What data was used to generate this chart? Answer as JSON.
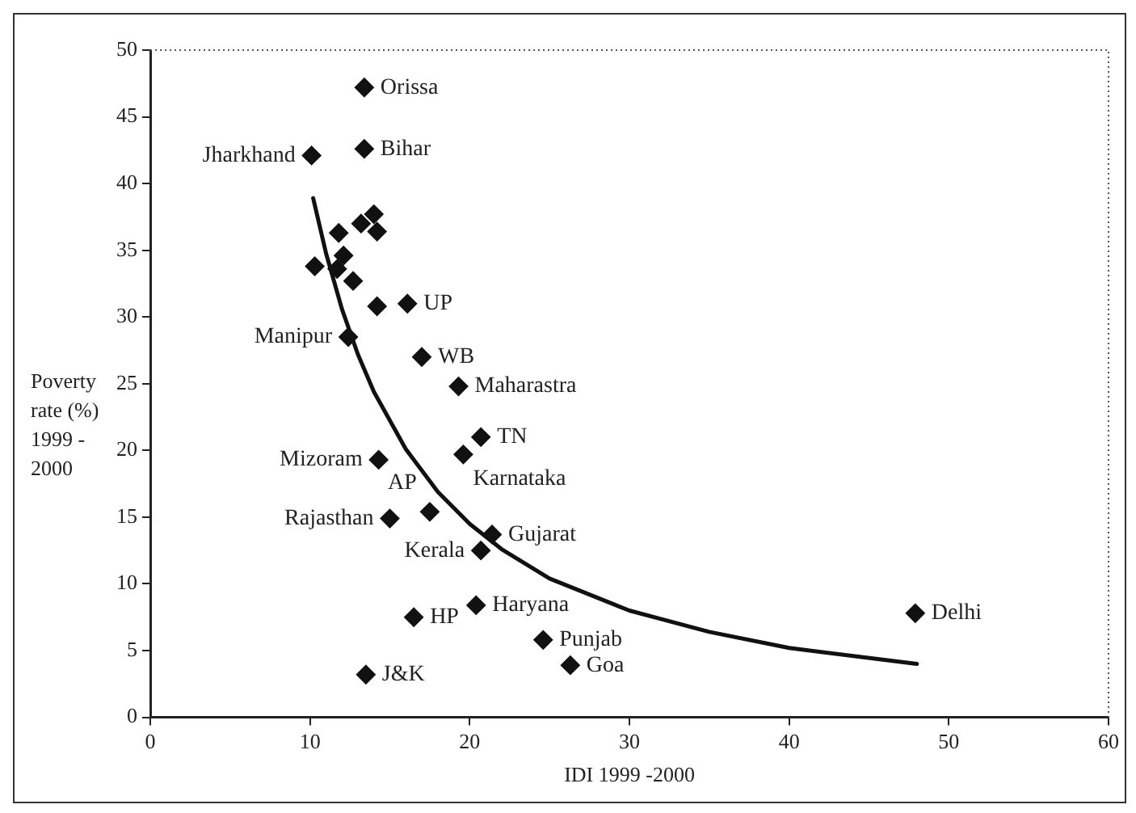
{
  "chart_data": {
    "type": "scatter",
    "xlabel": "IDI 1999 -2000",
    "ylabel": "Poverty rate (%) 1999 - 2000",
    "xlim": [
      0,
      60
    ],
    "xticks": [
      0,
      10,
      20,
      30,
      40,
      50,
      60
    ],
    "ylim": [
      0,
      50
    ],
    "yticks": [
      0,
      5,
      10,
      15,
      20,
      25,
      30,
      35,
      40,
      45,
      50
    ],
    "grid": false,
    "legend": false,
    "marker": "diamond",
    "series": [
      {
        "color": "#111111",
        "x": [
          13.4,
          13.4,
          10.1,
          13.2,
          14.0,
          14.2,
          11.8,
          12.1,
          10.3,
          11.7,
          12.7,
          14.2,
          16.1,
          12.4,
          17.0,
          19.3,
          20.7,
          19.6,
          14.3,
          17.5,
          15.0,
          21.4,
          20.7,
          20.4,
          16.5,
          13.5,
          24.6,
          26.3,
          47.9
        ],
        "values": [
          47.2,
          42.6,
          42.1,
          37.0,
          37.7,
          36.4,
          36.3,
          34.6,
          33.8,
          33.6,
          32.7,
          30.8,
          31.0,
          28.5,
          27.0,
          24.8,
          21.0,
          19.7,
          19.3,
          15.4,
          14.9,
          13.7,
          12.5,
          8.4,
          7.5,
          3.2,
          5.8,
          3.9,
          7.8
        ]
      },
      {
        "type": "line",
        "color": "#111111",
        "marker": "none",
        "line_style": "solid",
        "x": [
          10.2,
          11,
          12,
          13,
          14,
          16,
          18,
          20,
          22,
          25,
          30,
          35,
          40,
          48
        ],
        "values": [
          38.9,
          34.8,
          30.6,
          27.2,
          24.4,
          20.1,
          16.9,
          14.5,
          12.6,
          10.4,
          8.0,
          6.4,
          5.2,
          4.0
        ]
      }
    ],
    "annotations": [
      {
        "text": "Orissa",
        "x": 13.4,
        "y": 47.2
      },
      {
        "text": "Bihar",
        "x": 13.4,
        "y": 42.6
      },
      {
        "text": "Jharkhand",
        "x": 10.1,
        "y": 42.1
      },
      {
        "text": "UP",
        "x": 16.1,
        "y": 31.0
      },
      {
        "text": "Manipur",
        "x": 12.4,
        "y": 28.5
      },
      {
        "text": "WB",
        "x": 17.0,
        "y": 27.0
      },
      {
        "text": "Maharastra",
        "x": 19.3,
        "y": 24.8
      },
      {
        "text": "TN",
        "x": 20.7,
        "y": 21.0
      },
      {
        "text": "Karnataka",
        "x": 19.6,
        "y": 19.7
      },
      {
        "text": "Mizoram",
        "x": 14.3,
        "y": 19.3
      },
      {
        "text": "AP",
        "x": 17.5,
        "y": 15.4
      },
      {
        "text": "Rajasthan",
        "x": 15.0,
        "y": 14.9
      },
      {
        "text": "Gujarat",
        "x": 21.4,
        "y": 13.7
      },
      {
        "text": "Kerala",
        "x": 20.7,
        "y": 12.5
      },
      {
        "text": "Haryana",
        "x": 20.4,
        "y": 8.4
      },
      {
        "text": "HP",
        "x": 16.5,
        "y": 7.5
      },
      {
        "text": "J&K",
        "x": 13.5,
        "y": 3.2
      },
      {
        "text": "Punjab",
        "x": 24.6,
        "y": 5.8
      },
      {
        "text": "Goa",
        "x": 26.3,
        "y": 3.9
      },
      {
        "text": "Delhi",
        "x": 47.9,
        "y": 7.8
      }
    ]
  }
}
